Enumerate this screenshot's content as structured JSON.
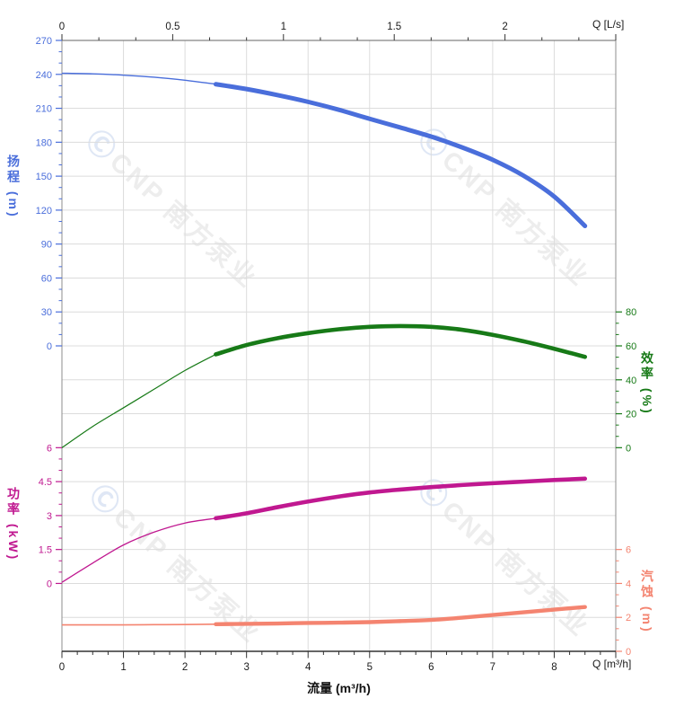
{
  "watermark": {
    "logo": "Ⓒ",
    "brand": "CNP 南方泵业"
  },
  "colors": {
    "head": "#4a6edb",
    "efficiency": "#177a17",
    "power": "#c01890",
    "npsh": "#f48470",
    "grid": "#dcdcdc",
    "frame": "#8c8c8c",
    "frame_bottom": "#333333",
    "axis_text": "#1a1a1a"
  },
  "axes": {
    "top": {
      "unit_label": "Q [L/s]",
      "tick_values": [
        0,
        0.5,
        1,
        1.5,
        2
      ],
      "max": 2.5
    },
    "bottom": {
      "unit_label": "Q [m³/h]",
      "axis_title": "流量 (m³/h)",
      "tick_values": [
        0,
        1,
        2,
        3,
        4,
        5,
        6,
        7,
        8
      ],
      "max": 9
    },
    "head": {
      "title": "扬程 (m)",
      "ticks": [
        270,
        240,
        210,
        180,
        150,
        120,
        90,
        60,
        30,
        0
      ]
    },
    "power": {
      "title": "功率 (kW)",
      "ticks": [
        6,
        4.5,
        3,
        1.5,
        0
      ]
    },
    "efficiency": {
      "title": "效率 (%)",
      "ticks": [
        80,
        60,
        40,
        20,
        0
      ]
    },
    "npsh": {
      "title": "汽蚀 (m)",
      "ticks": [
        6,
        4,
        2,
        0
      ]
    }
  },
  "chart_data": {
    "type": "line",
    "title": "",
    "xlabel_bottom": "流量 (m³/h)",
    "xlabel_bottom_unit": "Q [m³/h]",
    "xlabel_top_unit": "Q [L/s]",
    "x_range_m3h": [
      0,
      9
    ],
    "x_range_ls": [
      0,
      2.5
    ],
    "grid": true,
    "duty_range_start_m3h": 2.5,
    "series": [
      {
        "key": "head",
        "name": "扬程",
        "unit": "m",
        "axis_side": "left-top",
        "axis_range": [
          0,
          270
        ],
        "color": "#4a6edb",
        "points": [
          [
            0,
            241
          ],
          [
            0.5,
            240.5
          ],
          [
            1,
            239.3
          ],
          [
            1.5,
            237.5
          ],
          [
            2,
            234.8
          ],
          [
            2.5,
            231.3
          ],
          [
            3,
            227
          ],
          [
            3.5,
            221.7
          ],
          [
            4,
            215.7
          ],
          [
            4.5,
            208.7
          ],
          [
            5,
            200.7
          ],
          [
            5.5,
            193
          ],
          [
            6,
            185
          ],
          [
            6.5,
            175.5
          ],
          [
            7,
            164.5
          ],
          [
            7.5,
            150.5
          ],
          [
            8,
            132
          ],
          [
            8.5,
            106
          ]
        ]
      },
      {
        "key": "efficiency",
        "name": "效率",
        "unit": "%",
        "axis_side": "right-top",
        "axis_range": [
          0,
          80
        ],
        "color": "#177a17",
        "points": [
          [
            0,
            0
          ],
          [
            0.5,
            12.5
          ],
          [
            1,
            23.5
          ],
          [
            1.5,
            34.5
          ],
          [
            2,
            45.5
          ],
          [
            2.5,
            55
          ],
          [
            3,
            60.5
          ],
          [
            3.5,
            64.5
          ],
          [
            4,
            67.5
          ],
          [
            4.5,
            69.8
          ],
          [
            5,
            71.2
          ],
          [
            5.5,
            71.7
          ],
          [
            6,
            71.2
          ],
          [
            6.5,
            69.5
          ],
          [
            7,
            66.5
          ],
          [
            7.5,
            62.7
          ],
          [
            8,
            58.3
          ],
          [
            8.5,
            53.5
          ]
        ]
      },
      {
        "key": "power",
        "name": "功率",
        "unit": "kW",
        "axis_side": "left-bottom",
        "axis_range": [
          0,
          6
        ],
        "color": "#c01890",
        "points": [
          [
            0,
            0.05
          ],
          [
            0.5,
            0.9
          ],
          [
            1,
            1.7
          ],
          [
            1.5,
            2.27
          ],
          [
            2,
            2.67
          ],
          [
            2.5,
            2.88
          ],
          [
            3,
            3.1
          ],
          [
            3.5,
            3.37
          ],
          [
            4,
            3.62
          ],
          [
            4.5,
            3.84
          ],
          [
            5,
            4.02
          ],
          [
            5.5,
            4.15
          ],
          [
            6,
            4.26
          ],
          [
            6.5,
            4.35
          ],
          [
            7,
            4.43
          ],
          [
            7.5,
            4.5
          ],
          [
            8,
            4.57
          ],
          [
            8.5,
            4.63
          ]
        ]
      },
      {
        "key": "npsh",
        "name": "汽蚀",
        "unit": "m",
        "axis_side": "right-bottom",
        "axis_range": [
          0,
          6
        ],
        "color": "#f48470",
        "points": [
          [
            0,
            1.56
          ],
          [
            0.5,
            1.56
          ],
          [
            1,
            1.56
          ],
          [
            1.5,
            1.57
          ],
          [
            2,
            1.58
          ],
          [
            2.5,
            1.6
          ],
          [
            3,
            1.62
          ],
          [
            3.5,
            1.64
          ],
          [
            4,
            1.67
          ],
          [
            4.5,
            1.69
          ],
          [
            5,
            1.72
          ],
          [
            5.5,
            1.78
          ],
          [
            6,
            1.85
          ],
          [
            6.5,
            1.98
          ],
          [
            7,
            2.14
          ],
          [
            7.5,
            2.3
          ],
          [
            8,
            2.46
          ],
          [
            8.5,
            2.61
          ]
        ]
      }
    ]
  }
}
